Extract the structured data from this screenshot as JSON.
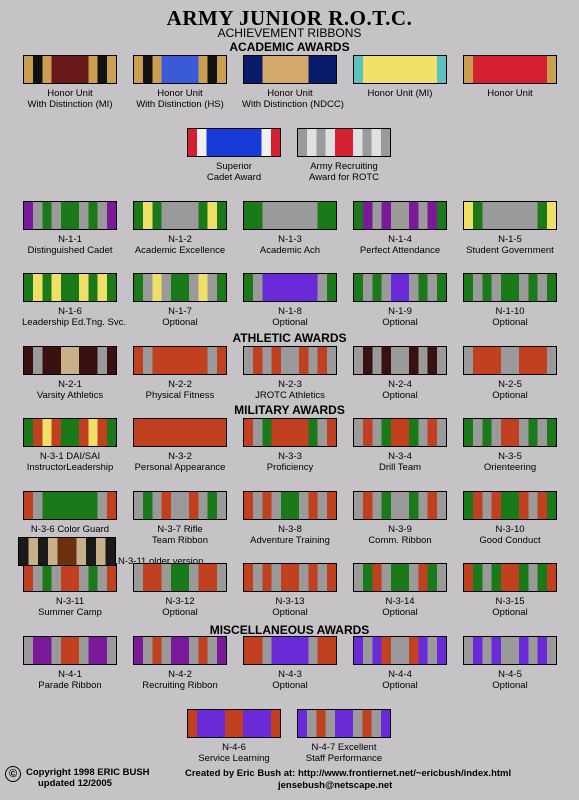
{
  "header": {
    "title": "ARMY JUNIOR R.O.T.C.",
    "subtitle": "ACHIEVEMENT RIBBONS"
  },
  "sections": {
    "academic": "ACADEMIC AWARDS",
    "athletic": "ATHLETIC AWARDS",
    "military": "MILITARY AWARDS",
    "misc": "MISCELLANEOUS AWARDS"
  },
  "ribbons": [
    {
      "id": "honor-mi-distinction",
      "line1": "Honor Unit",
      "line2": "With Distinction (MI)",
      "stripes": [
        "#caa050",
        "#111",
        "#caa050",
        "#6a1a1a",
        "#6a1a1a",
        "#6a1a1a",
        "#6a1a1a",
        "#caa050",
        "#111",
        "#caa050"
      ]
    },
    {
      "id": "honor-hs-distinction",
      "line1": "Honor Unit",
      "line2": "With Distinction (HS)",
      "stripes": [
        "#caa050",
        "#111",
        "#caa050",
        "#3a5ad8",
        "#3a5ad8",
        "#3a5ad8",
        "#3a5ad8",
        "#caa050",
        "#111",
        "#caa050"
      ]
    },
    {
      "id": "honor-ndcc-distinction",
      "line1": "Honor Unit",
      "line2": "With Distinction (NDCC)",
      "stripes": [
        "#0a1a6a",
        "#0a1a6a",
        "#d4a868",
        "#d4a868",
        "#d4a868",
        "#d4a868",
        "#d4a868",
        "#0a1a6a",
        "#0a1a6a",
        "#0a1a6a"
      ]
    },
    {
      "id": "honor-mi",
      "line1": "Honor Unit (MI)",
      "line2": "",
      "stripes": [
        "#5ac0c0",
        "#f0e068",
        "#f0e068",
        "#f0e068",
        "#f0e068",
        "#f0e068",
        "#f0e068",
        "#f0e068",
        "#f0e068",
        "#5ac0c0"
      ]
    },
    {
      "id": "honor-unit",
      "line1": "Honor Unit",
      "line2": "",
      "stripes": [
        "#caa050",
        "#d42030",
        "#d42030",
        "#d42030",
        "#d42030",
        "#d42030",
        "#d42030",
        "#d42030",
        "#d42030",
        "#caa050"
      ]
    },
    {
      "id": "superior-cadet",
      "line1": "Superior",
      "line2": "Cadet Award",
      "stripes": [
        "#d42030",
        "#f0f0f0",
        "#1a3ad8",
        "#1a3ad8",
        "#1a3ad8",
        "#1a3ad8",
        "#1a3ad8",
        "#1a3ad8",
        "#f0f0f0",
        "#d42030"
      ]
    },
    {
      "id": "army-recruiting",
      "line1": "Army Recruiting",
      "line2": "Award for ROTC",
      "stripes": [
        "#9a9a9a",
        "#e0e0e0",
        "#9a9a9a",
        "#e0e0e0",
        "#d42030",
        "#d42030",
        "#e0e0e0",
        "#9a9a9a",
        "#e0e0e0",
        "#9a9a9a"
      ]
    },
    {
      "id": "n-1-1",
      "line1": "N-1-1",
      "line2": "Distinguished Cadet",
      "stripes": [
        "#7a1a9a",
        "#9a9a9a",
        "#1a7a1a",
        "#9a9a9a",
        "#1a7a1a",
        "#1a7a1a",
        "#9a9a9a",
        "#1a7a1a",
        "#9a9a9a",
        "#7a1a9a"
      ]
    },
    {
      "id": "n-1-2",
      "line1": "N-1-2",
      "line2": "Academic Excellence",
      "stripes": [
        "#1a7a1a",
        "#f0e068",
        "#1a7a1a",
        "#9a9a9a",
        "#9a9a9a",
        "#9a9a9a",
        "#9a9a9a",
        "#1a7a1a",
        "#f0e068",
        "#1a7a1a"
      ]
    },
    {
      "id": "n-1-3",
      "line1": "N-1-3",
      "line2": "Academic Ach",
      "stripes": [
        "#1a7a1a",
        "#1a7a1a",
        "#9a9a9a",
        "#9a9a9a",
        "#9a9a9a",
        "#9a9a9a",
        "#9a9a9a",
        "#9a9a9a",
        "#1a7a1a",
        "#1a7a1a"
      ]
    },
    {
      "id": "n-1-4",
      "line1": "N-1-4",
      "line2": "Perfect Attendance",
      "stripes": [
        "#1a7a1a",
        "#7a1a9a",
        "#9a9a9a",
        "#7a1a9a",
        "#9a9a9a",
        "#9a9a9a",
        "#7a1a9a",
        "#9a9a9a",
        "#7a1a9a",
        "#1a7a1a"
      ]
    },
    {
      "id": "n-1-5",
      "line1": "N-1-5",
      "line2": "Student Government",
      "stripes": [
        "#f0e068",
        "#1a7a1a",
        "#9a9a9a",
        "#9a9a9a",
        "#9a9a9a",
        "#9a9a9a",
        "#9a9a9a",
        "#9a9a9a",
        "#1a7a1a",
        "#f0e068"
      ]
    },
    {
      "id": "n-1-6",
      "line1": "N-1-6",
      "line2": "Leadership Ed.Tng. Svc.",
      "stripes": [
        "#1a7a1a",
        "#f0e068",
        "#1a7a1a",
        "#f0e068",
        "#1a7a1a",
        "#1a7a1a",
        "#f0e068",
        "#1a7a1a",
        "#f0e068",
        "#1a7a1a"
      ]
    },
    {
      "id": "n-1-7",
      "line1": "N-1-7",
      "line2": "Optional",
      "stripes": [
        "#1a7a1a",
        "#9a9a9a",
        "#f0e068",
        "#9a9a9a",
        "#1a7a1a",
        "#1a7a1a",
        "#9a9a9a",
        "#f0e068",
        "#9a9a9a",
        "#1a7a1a"
      ]
    },
    {
      "id": "n-1-8",
      "line1": "N-1-8",
      "line2": "Optional",
      "stripes": [
        "#1a7a1a",
        "#9a9a9a",
        "#6a2ad8",
        "#6a2ad8",
        "#6a2ad8",
        "#6a2ad8",
        "#6a2ad8",
        "#6a2ad8",
        "#9a9a9a",
        "#1a7a1a"
      ]
    },
    {
      "id": "n-1-9",
      "line1": "N-1-9",
      "line2": "Optional",
      "stripes": [
        "#1a7a1a",
        "#9a9a9a",
        "#1a7a1a",
        "#9a9a9a",
        "#6a2ad8",
        "#6a2ad8",
        "#9a9a9a",
        "#1a7a1a",
        "#9a9a9a",
        "#1a7a1a"
      ]
    },
    {
      "id": "n-1-10",
      "line1": "N-1-10",
      "line2": "Optional",
      "stripes": [
        "#1a7a1a",
        "#9a9a9a",
        "#1a7a1a",
        "#9a9a9a",
        "#1a7a1a",
        "#1a7a1a",
        "#9a9a9a",
        "#1a7a1a",
        "#9a9a9a",
        "#1a7a1a"
      ]
    },
    {
      "id": "n-2-1",
      "line1": "N-2-1",
      "line2": "Varsity Athletics",
      "stripes": [
        "#3a1010",
        "#9a9a9a",
        "#3a1010",
        "#3a1010",
        "#c8b088",
        "#c8b088",
        "#3a1010",
        "#3a1010",
        "#9a9a9a",
        "#3a1010"
      ]
    },
    {
      "id": "n-2-2",
      "line1": "N-2-2",
      "line2": "Physical Fitness",
      "stripes": [
        "#c04020",
        "#9a9a9a",
        "#c04020",
        "#c04020",
        "#c04020",
        "#c04020",
        "#c04020",
        "#c04020",
        "#9a9a9a",
        "#c04020"
      ]
    },
    {
      "id": "n-2-3",
      "line1": "N-2-3",
      "line2": "JROTC Athletics",
      "stripes": [
        "#9a9a9a",
        "#c04020",
        "#9a9a9a",
        "#c04020",
        "#9a9a9a",
        "#9a9a9a",
        "#c04020",
        "#9a9a9a",
        "#c04020",
        "#9a9a9a"
      ]
    },
    {
      "id": "n-2-4",
      "line1": "N-2-4",
      "line2": "Optional",
      "stripes": [
        "#9a9a9a",
        "#3a1010",
        "#9a9a9a",
        "#3a1010",
        "#9a9a9a",
        "#9a9a9a",
        "#3a1010",
        "#9a9a9a",
        "#3a1010",
        "#9a9a9a"
      ]
    },
    {
      "id": "n-2-5",
      "line1": "N-2-5",
      "line2": "Optional",
      "stripes": [
        "#9a9a9a",
        "#c04020",
        "#c04020",
        "#c04020",
        "#9a9a9a",
        "#9a9a9a",
        "#c04020",
        "#c04020",
        "#c04020",
        "#9a9a9a"
      ]
    },
    {
      "id": "n-3-1",
      "line1": "N-3-1 DAI/SAI",
      "line2": "InstructorLeadership",
      "stripes": [
        "#1a7a1a",
        "#c04020",
        "#f0e068",
        "#c04020",
        "#1a7a1a",
        "#1a7a1a",
        "#c04020",
        "#f0e068",
        "#c04020",
        "#1a7a1a"
      ]
    },
    {
      "id": "n-3-2",
      "line1": "N-3-2",
      "line2": "Personal Appearance",
      "stripes": [
        "#c04020",
        "#c04020",
        "#c04020",
        "#c04020",
        "#c04020",
        "#c04020",
        "#c04020",
        "#c04020",
        "#c04020",
        "#c04020"
      ]
    },
    {
      "id": "n-3-3",
      "line1": "N-3-3",
      "line2": "Proficiency",
      "stripes": [
        "#c04020",
        "#9a9a9a",
        "#1a7a1a",
        "#c04020",
        "#c04020",
        "#c04020",
        "#c04020",
        "#1a7a1a",
        "#9a9a9a",
        "#c04020"
      ]
    },
    {
      "id": "n-3-4",
      "line1": "N-3-4",
      "line2": "Drill Team",
      "stripes": [
        "#9a9a9a",
        "#c04020",
        "#9a9a9a",
        "#1a7a1a",
        "#c04020",
        "#c04020",
        "#1a7a1a",
        "#9a9a9a",
        "#c04020",
        "#9a9a9a"
      ]
    },
    {
      "id": "n-3-5",
      "line1": "N-3-5",
      "line2": "Orienteering",
      "stripes": [
        "#1a7a1a",
        "#9a9a9a",
        "#1a7a1a",
        "#9a9a9a",
        "#c04020",
        "#c04020",
        "#9a9a9a",
        "#1a7a1a",
        "#9a9a9a",
        "#1a7a1a"
      ]
    },
    {
      "id": "n-3-6",
      "line1": "N-3-6 Color Guard",
      "line2": "",
      "stripes": [
        "#c04020",
        "#9a9a9a",
        "#1a7a1a",
        "#1a7a1a",
        "#1a7a1a",
        "#1a7a1a",
        "#1a7a1a",
        "#1a7a1a",
        "#9a9a9a",
        "#c04020"
      ]
    },
    {
      "id": "n-3-7",
      "line1": "N-3-7  Rifle",
      "line2": "Team Ribbon",
      "stripes": [
        "#9a9a9a",
        "#1a7a1a",
        "#9a9a9a",
        "#c04020",
        "#9a9a9a",
        "#9a9a9a",
        "#c04020",
        "#9a9a9a",
        "#1a7a1a",
        "#9a9a9a"
      ]
    },
    {
      "id": "n-3-8",
      "line1": "N-3-8",
      "line2": "Adventure Training",
      "stripes": [
        "#c04020",
        "#9a9a9a",
        "#c04020",
        "#9a9a9a",
        "#1a7a1a",
        "#1a7a1a",
        "#9a9a9a",
        "#c04020",
        "#9a9a9a",
        "#c04020"
      ]
    },
    {
      "id": "n-3-9",
      "line1": "N-3-9",
      "line2": "Comm. Ribbon",
      "stripes": [
        "#9a9a9a",
        "#c04020",
        "#9a9a9a",
        "#1a7a1a",
        "#9a9a9a",
        "#9a9a9a",
        "#1a7a1a",
        "#9a9a9a",
        "#c04020",
        "#9a9a9a"
      ]
    },
    {
      "id": "n-3-10",
      "line1": "N-3-10",
      "line2": "Good Conduct",
      "stripes": [
        "#1a7a1a",
        "#c04020",
        "#9a9a9a",
        "#c04020",
        "#1a7a1a",
        "#1a7a1a",
        "#c04020",
        "#9a9a9a",
        "#c04020",
        "#1a7a1a"
      ]
    },
    {
      "id": "n-3-11",
      "line1": "N-3-11",
      "line2": "Summer Camp",
      "stripes": [
        "#c04020",
        "#9a9a9a",
        "#1a7a1a",
        "#9a9a9a",
        "#c04020",
        "#c04020",
        "#9a9a9a",
        "#1a7a1a",
        "#9a9a9a",
        "#c04020"
      ]
    },
    {
      "id": "n-3-12",
      "line1": "N-3-12",
      "line2": "Optional",
      "stripes": [
        "#9a9a9a",
        "#c04020",
        "#c04020",
        "#9a9a9a",
        "#1a7a1a",
        "#1a7a1a",
        "#9a9a9a",
        "#c04020",
        "#c04020",
        "#9a9a9a"
      ]
    },
    {
      "id": "n-3-13",
      "line1": "N-3-13",
      "line2": "Optional",
      "stripes": [
        "#c04020",
        "#9a9a9a",
        "#c04020",
        "#9a9a9a",
        "#c04020",
        "#c04020",
        "#9a9a9a",
        "#c04020",
        "#9a9a9a",
        "#c04020"
      ]
    },
    {
      "id": "n-3-14",
      "line1": "N-3-14",
      "line2": "Optional",
      "stripes": [
        "#9a9a9a",
        "#1a7a1a",
        "#c04020",
        "#9a9a9a",
        "#1a7a1a",
        "#1a7a1a",
        "#9a9a9a",
        "#c04020",
        "#1a7a1a",
        "#9a9a9a"
      ]
    },
    {
      "id": "n-3-15",
      "line1": "N-3-15",
      "line2": "Optional",
      "stripes": [
        "#c04020",
        "#1a7a1a",
        "#9a9a9a",
        "#1a7a1a",
        "#c04020",
        "#c04020",
        "#1a7a1a",
        "#9a9a9a",
        "#1a7a1a",
        "#c04020"
      ]
    },
    {
      "id": "n-4-1",
      "line1": "N-4-1",
      "line2": "Parade Ribbon",
      "stripes": [
        "#9a9a9a",
        "#7a1a9a",
        "#7a1a9a",
        "#9a9a9a",
        "#c04020",
        "#c04020",
        "#9a9a9a",
        "#7a1a9a",
        "#7a1a9a",
        "#9a9a9a"
      ]
    },
    {
      "id": "n-4-2",
      "line1": "N-4-2",
      "line2": "Recruiting Ribbon",
      "stripes": [
        "#7a1a9a",
        "#9a9a9a",
        "#c04020",
        "#9a9a9a",
        "#7a1a9a",
        "#7a1a9a",
        "#9a9a9a",
        "#c04020",
        "#9a9a9a",
        "#7a1a9a"
      ]
    },
    {
      "id": "n-4-3",
      "line1": "N-4-3",
      "line2": "Optional",
      "stripes": [
        "#c04020",
        "#c04020",
        "#9a9a9a",
        "#6a2ad8",
        "#6a2ad8",
        "#6a2ad8",
        "#6a2ad8",
        "#9a9a9a",
        "#c04020",
        "#c04020"
      ]
    },
    {
      "id": "n-4-4",
      "line1": "N-4-4",
      "line2": "Optional",
      "stripes": [
        "#6a2ad8",
        "#9a9a9a",
        "#6a2ad8",
        "#c04020",
        "#9a9a9a",
        "#9a9a9a",
        "#c04020",
        "#6a2ad8",
        "#9a9a9a",
        "#6a2ad8"
      ]
    },
    {
      "id": "n-4-5",
      "line1": "N-4-5",
      "line2": "Optional",
      "stripes": [
        "#9a9a9a",
        "#6a2ad8",
        "#9a9a9a",
        "#6a2ad8",
        "#9a9a9a",
        "#9a9a9a",
        "#6a2ad8",
        "#9a9a9a",
        "#6a2ad8",
        "#9a9a9a"
      ]
    },
    {
      "id": "n-4-6",
      "line1": "N-4-6",
      "line2": "Service Learning",
      "stripes": [
        "#c04020",
        "#6a2ad8",
        "#6a2ad8",
        "#6a2ad8",
        "#c04020",
        "#c04020",
        "#6a2ad8",
        "#6a2ad8",
        "#6a2ad8",
        "#c04020"
      ]
    },
    {
      "id": "n-4-7",
      "line1": "N-4-7 Excellent",
      "line2": "Staff Performance",
      "stripes": [
        "#6a2ad8",
        "#9a9a9a",
        "#c04020",
        "#9a9a9a",
        "#6a2ad8",
        "#6a2ad8",
        "#9a9a9a",
        "#c04020",
        "#9a9a9a",
        "#6a2ad8"
      ]
    }
  ],
  "older_version": {
    "label": "N-3-11 older version",
    "stripes": [
      "#1a1a1a",
      "#c8b088",
      "#1a1a1a",
      "#c8b088",
      "#6a3010",
      "#6a3010",
      "#c8b088",
      "#1a1a1a",
      "#c8b088",
      "#1a1a1a"
    ]
  },
  "footer": {
    "copyright_icon": "©",
    "copyright_line1": "Copyright 1998  ERIC BUSH",
    "copyright_line2": "updated 12/2005",
    "credit_line1": "Created by Eric Bush at: http://www.frontiernet.net/~ericbush/index.html",
    "credit_line2": "jensebush@netscape.net"
  }
}
